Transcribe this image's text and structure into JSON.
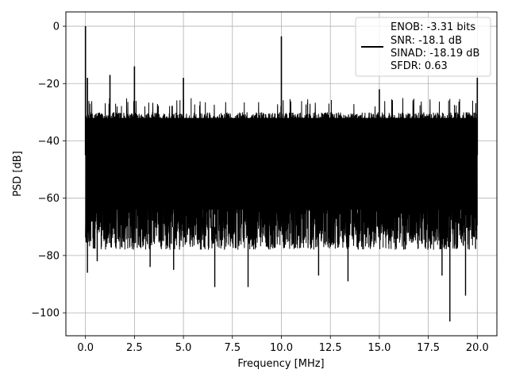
{
  "chart_data": {
    "type": "line",
    "xlabel": "Frequency [MHz]",
    "ylabel": "PSD [dB]",
    "xlim": [
      -1.0,
      21.0
    ],
    "ylim": [
      -108,
      5
    ],
    "x_ticks": [
      0.0,
      2.5,
      5.0,
      7.5,
      10.0,
      12.5,
      15.0,
      17.5,
      20.0
    ],
    "x_tick_labels": [
      "0.0",
      "2.5",
      "5.0",
      "7.5",
      "10.0",
      "12.5",
      "15.0",
      "17.5",
      "20.0"
    ],
    "y_ticks": [
      0,
      -20,
      -40,
      -60,
      -80,
      -100
    ],
    "y_tick_labels": [
      "0",
      "−20",
      "−40",
      "−60",
      "−80",
      "−100"
    ],
    "grid": true,
    "legend_position": "top-right",
    "line_color": "#000000",
    "series": [
      {
        "name": "",
        "x_range": [
          0.0,
          20.0
        ],
        "noise_floor_band": [
          -78,
          -30
        ],
        "spikes": [
          {
            "x": 0.0,
            "y": 0
          },
          {
            "x": 0.1,
            "y": -18
          },
          {
            "x": 1.25,
            "y": -17
          },
          {
            "x": 2.5,
            "y": -14
          },
          {
            "x": 5.0,
            "y": -18
          },
          {
            "x": 10.0,
            "y": -3.5
          },
          {
            "x": 15.0,
            "y": -22
          },
          {
            "x": 20.0,
            "y": -18
          }
        ],
        "dips": [
          {
            "x": 0.1,
            "y": -86
          },
          {
            "x": 0.6,
            "y": -82
          },
          {
            "x": 3.3,
            "y": -84
          },
          {
            "x": 4.5,
            "y": -85
          },
          {
            "x": 6.6,
            "y": -91
          },
          {
            "x": 8.3,
            "y": -91
          },
          {
            "x": 11.9,
            "y": -87
          },
          {
            "x": 13.4,
            "y": -89
          },
          {
            "x": 18.2,
            "y": -87
          },
          {
            "x": 18.6,
            "y": -103
          },
          {
            "x": 19.4,
            "y": -94
          }
        ]
      }
    ],
    "legend_lines": [
      "ENOB: -3.31 bits",
      "SNR: -18.1 dB",
      "SINAD: -18.19 dB",
      "SFDR: 0.63"
    ]
  }
}
